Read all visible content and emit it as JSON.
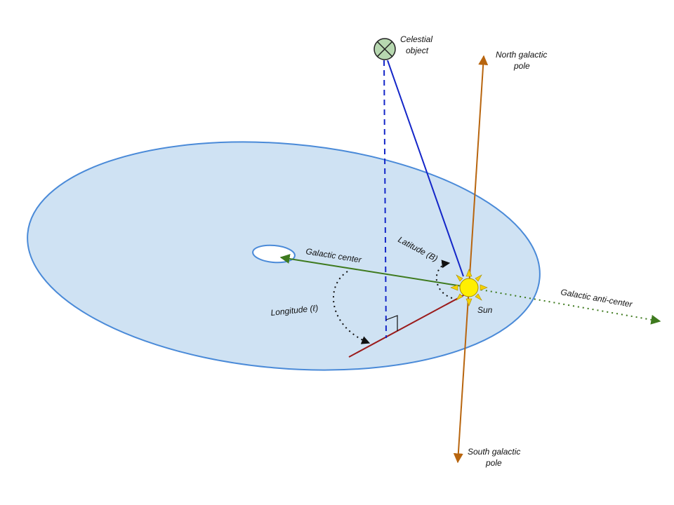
{
  "labels": {
    "celestial_object_line1": "Celestial",
    "celestial_object_line2": "object",
    "north_pole_line1": "North galactic",
    "north_pole_line2": "pole",
    "south_pole_line1": "South galactic",
    "south_pole_line2": "pole",
    "galactic_center": "Galactic center",
    "anti_center": "Galactic anti-center",
    "latitude": "Latitude (B)",
    "longitude": "Longitude (ℓ)",
    "sun": "Sun"
  },
  "colors": {
    "disk_fill": "#cfe2f3",
    "disk_stroke": "#4a8ad8",
    "sight_line": "#1426c8",
    "pole_axis": "#b8650e",
    "center_arrow": "#3e7a1e",
    "projection_line": "#9b1c1c",
    "sun_fill": "#ffef00",
    "sun_rays": "#f4d000",
    "object_fill": "#b7d8b0"
  },
  "icons": {
    "object_marker": "circled-cross-icon",
    "sun_marker": "sun-icon"
  }
}
